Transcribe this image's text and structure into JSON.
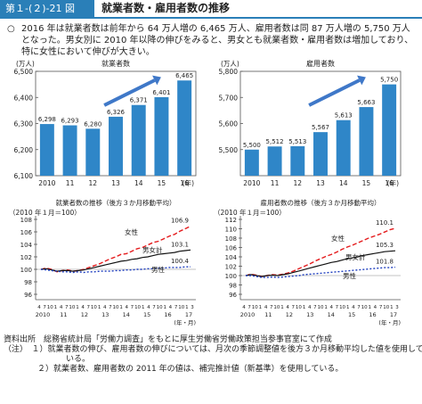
{
  "header": {
    "figure_no": "第１-(２)-21 図",
    "title": "就業者数・雇用者数の推移"
  },
  "summary": {
    "bullet": "○",
    "line1": "2016 年は就業者数は前年から 64 万人増の 6,465 万人、雇用者数は同 87 万人増の 5,750 万人",
    "line2": "となった。男女別に 2010 年以降の伸びをみると、男女とも就業者数・雇用者数は増加しており、",
    "line3": "特に女性において伸びが大きい。"
  },
  "colors": {
    "bar": "#2f86c8",
    "arrow": "#3f78c8",
    "female": "#e41a1c",
    "total": "#111111",
    "male": "#1f3fbf",
    "accent": "#2a7fb8"
  },
  "chart_data": [
    {
      "type": "bar",
      "title": "就業者数",
      "unit_label": "(万人)",
      "categories": [
        "2010",
        "11",
        "12",
        "13",
        "14",
        "15",
        "16"
      ],
      "x_suffix": "(年)",
      "values": [
        6298,
        6293,
        6280,
        6326,
        6371,
        6401,
        6465
      ],
      "value_labels": [
        "6,298",
        "6,293",
        "6,280",
        "6,326",
        "6,371",
        "6,401",
        "6,465"
      ],
      "ylim": [
        6100,
        6500
      ],
      "yticks": [
        6100,
        6200,
        6300,
        6400,
        6500
      ],
      "ytick_labels": [
        "6,100",
        "6,200",
        "6,300",
        "6,400",
        "6,500"
      ]
    },
    {
      "type": "bar",
      "title": "雇用者数",
      "unit_label": "(万人)",
      "categories": [
        "2010",
        "11",
        "12",
        "13",
        "14",
        "15",
        "16"
      ],
      "x_suffix": "(年)",
      "values": [
        5500,
        5512,
        5513,
        5567,
        5613,
        5663,
        5750
      ],
      "value_labels": [
        "5,500",
        "5,512",
        "5,513",
        "5,567",
        "5,613",
        "5,663",
        "5,750"
      ],
      "ylim": [
        5400,
        5800
      ],
      "yticks": [
        5500,
        5600,
        5700,
        5800
      ],
      "ytick_labels": [
        "5,500",
        "5,600",
        "5,700",
        "5,800"
      ]
    },
    {
      "type": "line",
      "title": "就業者数の推移（後方３か月移動平均）",
      "unit_label": "（2010 年１月＝100）",
      "ylim": [
        96,
        108
      ],
      "yticks": [
        96,
        98,
        100,
        102,
        104,
        106,
        108
      ],
      "ytick_labels": [
        "96",
        "98",
        "100",
        "102",
        "104",
        "106",
        "108"
      ],
      "x_month_labels": [
        "4",
        "7",
        "10",
        "1",
        "4",
        "7",
        "10",
        "1",
        "4",
        "7",
        "10",
        "1",
        "4",
        "7",
        "10",
        "1",
        "4",
        "7",
        "10",
        "1",
        "4",
        "7",
        "10",
        "1",
        "4",
        "7",
        "10",
        "1",
        "3"
      ],
      "x_year_labels": [
        "2010",
        "11",
        "12",
        "13",
        "14",
        "15",
        "16",
        "17"
      ],
      "x_suffix": "(年・月)",
      "series": [
        {
          "name": "女性",
          "end_label": "106.9",
          "values": [
            100.0,
            100.2,
            100.0,
            99.6,
            99.8,
            99.9,
            99.7,
            99.8,
            100.0,
            100.3,
            100.6,
            100.9,
            101.3,
            101.7,
            102.0,
            102.4,
            102.5,
            102.9,
            103.3,
            103.5,
            103.9,
            104.3,
            104.5,
            104.9,
            105.3,
            105.6,
            106.1,
            106.5,
            106.9
          ]
        },
        {
          "name": "男女計",
          "end_label": "103.1",
          "values": [
            100.0,
            100.1,
            99.9,
            99.7,
            99.8,
            99.8,
            99.7,
            99.8,
            99.9,
            100.1,
            100.3,
            100.5,
            100.7,
            100.9,
            101.1,
            101.3,
            101.4,
            101.6,
            101.7,
            101.9,
            102.0,
            102.2,
            102.4,
            102.5,
            102.6,
            102.7,
            102.9,
            103.0,
            103.1
          ]
        },
        {
          "name": "男性",
          "end_label": "100.4",
          "values": [
            100.0,
            99.9,
            99.8,
            99.7,
            99.6,
            99.6,
            99.5,
            99.6,
            99.5,
            99.6,
            99.6,
            99.7,
            99.7,
            99.7,
            99.8,
            99.8,
            99.9,
            99.9,
            100.0,
            100.0,
            100.1,
            100.1,
            100.2,
            100.2,
            100.3,
            100.3,
            100.3,
            100.4,
            100.4
          ]
        }
      ]
    },
    {
      "type": "line",
      "title": "雇用者数の推移（後方３か月移動平均）",
      "unit_label": "（2010 年１月＝100）",
      "ylim": [
        96,
        112
      ],
      "yticks": [
        96,
        98,
        100,
        102,
        104,
        106,
        108,
        110,
        112
      ],
      "ytick_labels": [
        "96",
        "98",
        "100",
        "102",
        "104",
        "106",
        "108",
        "110",
        "112"
      ],
      "x_month_labels": [
        "4",
        "7",
        "10",
        "1",
        "4",
        "7",
        "10",
        "1",
        "4",
        "7",
        "10",
        "1",
        "4",
        "7",
        "10",
        "1",
        "4",
        "7",
        "10",
        "1",
        "4",
        "7",
        "10",
        "1",
        "4",
        "7",
        "10",
        "1",
        "3"
      ],
      "x_year_labels": [
        "2010",
        "11",
        "12",
        "13",
        "14",
        "15",
        "16",
        "17"
      ],
      "x_suffix": "(年・月)",
      "series": [
        {
          "name": "女性",
          "end_label": "110.1",
          "values": [
            100.0,
            100.3,
            100.1,
            99.8,
            100.0,
            100.2,
            100.1,
            100.3,
            100.6,
            101.0,
            101.5,
            102.0,
            102.5,
            103.1,
            103.6,
            104.1,
            104.5,
            105.0,
            105.6,
            106.1,
            106.5,
            107.0,
            107.5,
            108.0,
            108.4,
            108.8,
            109.3,
            109.8,
            110.1
          ]
        },
        {
          "name": "男女計",
          "end_label": "105.3",
          "values": [
            100.0,
            100.2,
            100.0,
            99.8,
            100.0,
            100.1,
            100.0,
            100.2,
            100.4,
            100.7,
            101.0,
            101.3,
            101.6,
            101.9,
            102.2,
            102.5,
            102.8,
            103.0,
            103.3,
            103.6,
            103.8,
            104.0,
            104.3,
            104.5,
            104.7,
            104.9,
            105.1,
            105.2,
            105.3
          ]
        },
        {
          "name": "男性",
          "end_label": "101.8",
          "values": [
            100.0,
            100.0,
            99.8,
            99.6,
            99.6,
            99.7,
            99.6,
            99.7,
            99.8,
            99.9,
            100.0,
            100.2,
            100.3,
            100.4,
            100.5,
            100.6,
            100.7,
            100.8,
            100.9,
            101.0,
            101.1,
            101.2,
            101.3,
            101.4,
            101.5,
            101.6,
            101.7,
            101.7,
            101.8
          ]
        }
      ]
    }
  ],
  "notes": {
    "source": "資料出所　総務省統計局「労働力調査」をもとに厚生労働省労働政策担当参事官室にて作成",
    "note1": "（注）　１）就業者数の伸び、雇用者数の伸びについては、月次の季節調整値を後方３か月移動平均した値を使用して",
    "note1b": "いる。",
    "note2": "２）就業者数、雇用者数の 2011 年の値は、補完推計値（新基準）を使用している。"
  }
}
